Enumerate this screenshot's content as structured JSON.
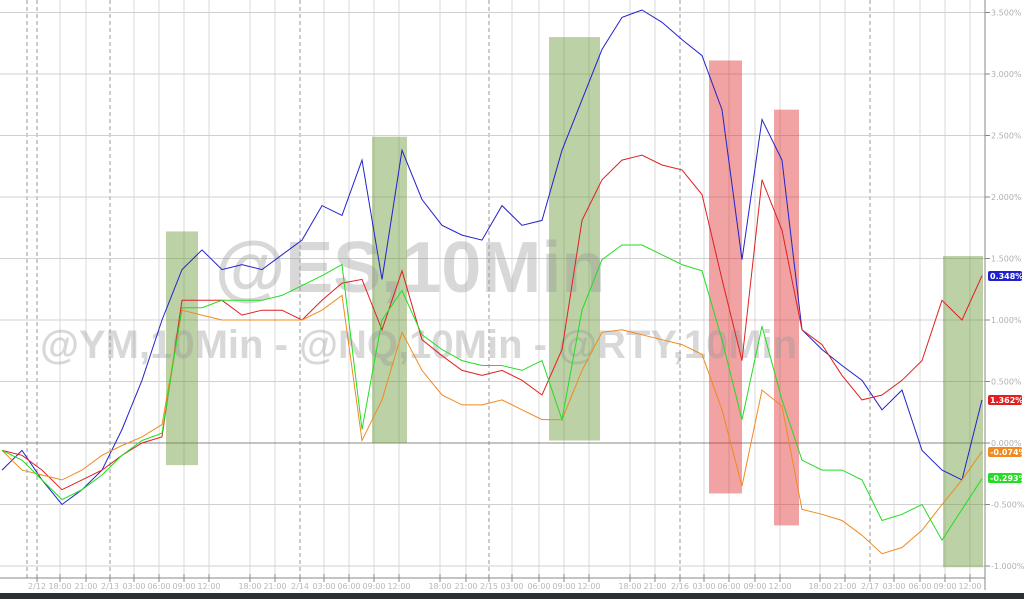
{
  "chart_data": {
    "type": "line",
    "title": "",
    "xlabel": "",
    "ylabel": "",
    "ylim": [
      -1.1,
      3.6
    ],
    "y_ticks": [
      "3.500%",
      "3.000%",
      "2.500%",
      "2.000%",
      "1.500%",
      "1.000%",
      "0.500%",
      "0.000%",
      "-0.500%",
      "-1.000%"
    ],
    "y_tick_values": [
      3.5,
      3.0,
      2.5,
      2.0,
      1.5,
      1.0,
      0.5,
      0.0,
      -0.5,
      -1.0
    ],
    "x_ticks": [
      "2/12",
      "18:00",
      "21:00",
      "2/13",
      "03:00",
      "06:00",
      "09:00",
      "12:00",
      "18:00",
      "21:00",
      "2/14",
      "03:00",
      "06:00",
      "09:00",
      "12:00",
      "18:00",
      "21:00",
      "2/15",
      "03:00",
      "06:00",
      "09:00",
      "12:00",
      "18:00",
      "21:00",
      "2/16",
      "03:00",
      "06:00",
      "09:00",
      "12:00",
      "18:00",
      "21:00",
      "2/17",
      "03:00",
      "06:00",
      "09:00",
      "12:00"
    ],
    "grid": true,
    "watermarks": [
      "@ES,10Min",
      "@YM,10Min - @NQ,10Min - @RTY,10Min"
    ],
    "series": [
      {
        "color": "#2222cc",
        "end_label": "0.348%",
        "values": [
          -0.22,
          -0.06,
          -0.3,
          -0.5,
          -0.38,
          -0.22,
          0.11,
          0.51,
          1.0,
          1.41,
          1.57,
          1.41,
          1.45,
          1.41,
          1.53,
          1.65,
          1.93,
          1.85,
          2.3,
          1.33,
          2.38,
          1.98,
          1.77,
          1.69,
          1.65,
          1.93,
          1.77,
          1.81,
          2.38,
          2.79,
          3.2,
          3.46,
          3.52,
          3.42,
          3.28,
          3.15,
          2.71,
          1.49,
          2.63,
          2.3,
          0.92,
          0.76,
          0.63,
          0.51,
          0.27,
          0.43,
          -0.06,
          -0.22,
          -0.3,
          0.35
        ]
      },
      {
        "color": "#e02020",
        "end_label": "1.362%",
        "values": [
          -0.06,
          -0.1,
          -0.22,
          -0.38,
          -0.3,
          -0.22,
          -0.1,
          0.0,
          0.05,
          1.16,
          1.16,
          1.16,
          1.04,
          1.08,
          1.08,
          1.0,
          1.16,
          1.3,
          1.33,
          0.92,
          1.4,
          0.84,
          0.71,
          0.59,
          0.55,
          0.59,
          0.51,
          0.39,
          0.76,
          1.81,
          2.14,
          2.3,
          2.34,
          2.26,
          2.22,
          2.02,
          1.33,
          0.67,
          2.14,
          1.73,
          0.92,
          0.8,
          0.55,
          0.35,
          0.39,
          0.51,
          0.67,
          1.16,
          1.0,
          1.36
        ]
      },
      {
        "color": "#f08a20",
        "end_label": "-0.074%",
        "values": [
          -0.06,
          -0.22,
          -0.26,
          -0.3,
          -0.22,
          -0.1,
          -0.02,
          0.05,
          0.15,
          1.08,
          1.04,
          1.0,
          1.0,
          1.0,
          1.0,
          1.0,
          1.08,
          1.2,
          0.02,
          0.35,
          0.9,
          0.59,
          0.39,
          0.31,
          0.31,
          0.35,
          0.27,
          0.19,
          0.19,
          0.59,
          0.9,
          0.92,
          0.88,
          0.84,
          0.8,
          0.72,
          0.27,
          -0.35,
          0.43,
          0.3,
          -0.54,
          -0.58,
          -0.63,
          -0.75,
          -0.9,
          -0.85,
          -0.71,
          -0.5,
          -0.3,
          -0.07
        ]
      },
      {
        "color": "#22dd22",
        "end_label": "-0.293%",
        "values": [
          -0.06,
          -0.14,
          -0.3,
          -0.46,
          -0.38,
          -0.26,
          -0.1,
          0.02,
          0.08,
          1.1,
          1.1,
          1.16,
          1.16,
          1.16,
          1.2,
          1.28,
          1.36,
          1.45,
          0.11,
          1.0,
          1.24,
          0.88,
          0.76,
          0.67,
          0.63,
          0.63,
          0.59,
          0.67,
          0.19,
          1.08,
          1.49,
          1.61,
          1.61,
          1.53,
          1.45,
          1.4,
          0.84,
          0.19,
          0.95,
          0.35,
          -0.14,
          -0.22,
          -0.22,
          -0.3,
          -0.63,
          -0.58,
          -0.5,
          -0.79,
          -0.54,
          -0.29
        ]
      }
    ],
    "highlight_boxes": [
      {
        "color": "#6b9a3a",
        "from_sample": 8.2,
        "to_sample": 9.8,
        "y_top": 1.72,
        "y_bottom": -0.18
      },
      {
        "color": "#6b9a3a",
        "from_sample": 18.5,
        "to_sample": 20.25,
        "y_top": 2.49,
        "y_bottom": 0.0
      },
      {
        "color": "#6b9a3a",
        "from_sample": 27.35,
        "to_sample": 29.9,
        "y_top": 3.3,
        "y_bottom": 0.02
      },
      {
        "color": "#e03030",
        "from_sample": 35.35,
        "to_sample": 37.0,
        "y_top": 3.11,
        "y_bottom": -0.41
      },
      {
        "color": "#e03030",
        "from_sample": 38.6,
        "to_sample": 39.85,
        "y_top": 2.71,
        "y_bottom": -0.67
      },
      {
        "color": "#6b9a3a",
        "from_sample": 47.05,
        "to_sample": 49.05,
        "y_top": 1.52,
        "y_bottom": -1.01
      }
    ]
  }
}
